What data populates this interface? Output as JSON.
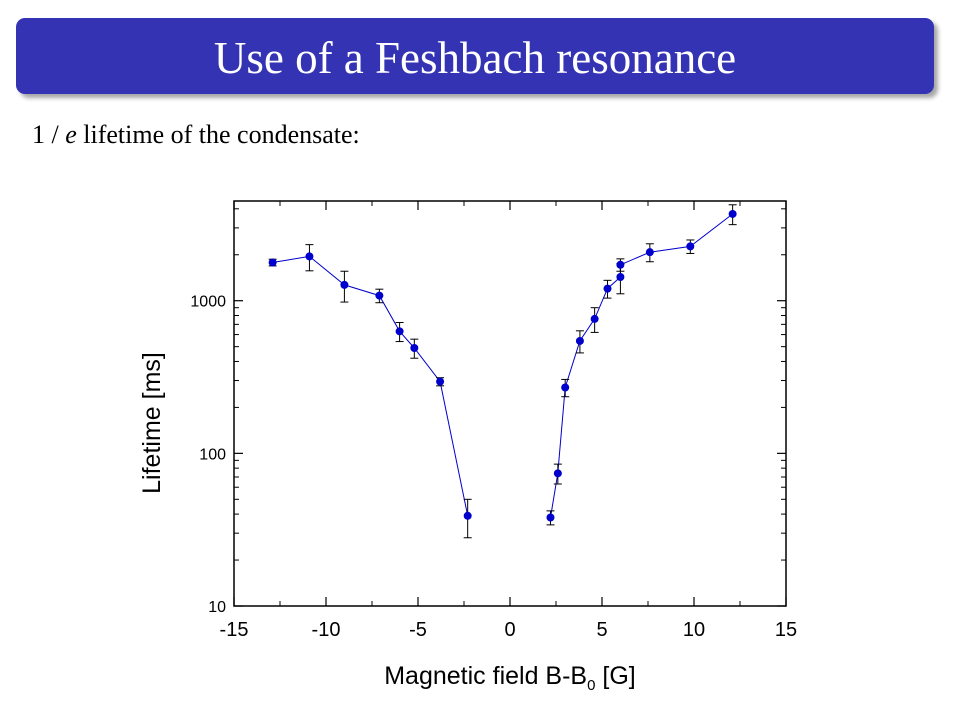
{
  "slide": {
    "title": "Use of a Feshbach resonance",
    "subtitle_prefix": "1 / ",
    "subtitle_italic": "e",
    "subtitle_suffix": " lifetime of the condensate:",
    "title_bar_color": "#3333b3"
  },
  "chart_data": {
    "type": "scatter",
    "title": "",
    "xlabel_main": "Magnetic field B-B",
    "xlabel_sub": "0",
    "xlabel_unit": " [G]",
    "ylabel": "Lifetime [ms]",
    "xlim": [
      -15,
      15
    ],
    "ylim": [
      10,
      4500
    ],
    "yscale": "log",
    "grid": false,
    "xticks": [
      -15,
      -10,
      -5,
      0,
      5,
      10,
      15
    ],
    "xtick_labels": [
      "-15",
      "-10",
      "-5",
      "0",
      "5",
      "10",
      "15"
    ],
    "yticks": [
      10,
      100,
      1000
    ],
    "ytick_labels": [
      "10",
      "100",
      "1000"
    ],
    "marker_color": "#0000cc",
    "line_color": "#0000cc",
    "series": [
      {
        "points": [
          {
            "x": -12.9,
            "y": 1780,
            "err": 90
          },
          {
            "x": -10.9,
            "y": 1950,
            "err": 380
          },
          {
            "x": -9.0,
            "y": 1270,
            "err": 290
          },
          {
            "x": -7.1,
            "y": 1080,
            "err": 110
          },
          {
            "x": -6.0,
            "y": 630,
            "err": 90
          },
          {
            "x": -5.2,
            "y": 490,
            "err": 70
          },
          {
            "x": -3.8,
            "y": 295,
            "err": 18
          },
          {
            "x": -2.3,
            "y": 39,
            "err": 11
          }
        ]
      },
      {
        "points": [
          {
            "x": 2.2,
            "y": 38,
            "err": 4
          },
          {
            "x": 2.6,
            "y": 74,
            "err": 11
          },
          {
            "x": 3.0,
            "y": 270,
            "err": 35
          },
          {
            "x": 3.8,
            "y": 545,
            "err": 90
          },
          {
            "x": 4.6,
            "y": 760,
            "err": 140
          },
          {
            "x": 5.3,
            "y": 1200,
            "err": 160
          },
          {
            "x": 6.0,
            "y": 1430,
            "err": 320
          },
          {
            "x": 6.0,
            "y": 1720,
            "err": 160
          },
          {
            "x": 7.6,
            "y": 2080,
            "err": 280
          },
          {
            "x": 9.8,
            "y": 2270,
            "err": 230
          },
          {
            "x": 12.1,
            "y": 3700,
            "err": 550
          }
        ]
      }
    ]
  }
}
